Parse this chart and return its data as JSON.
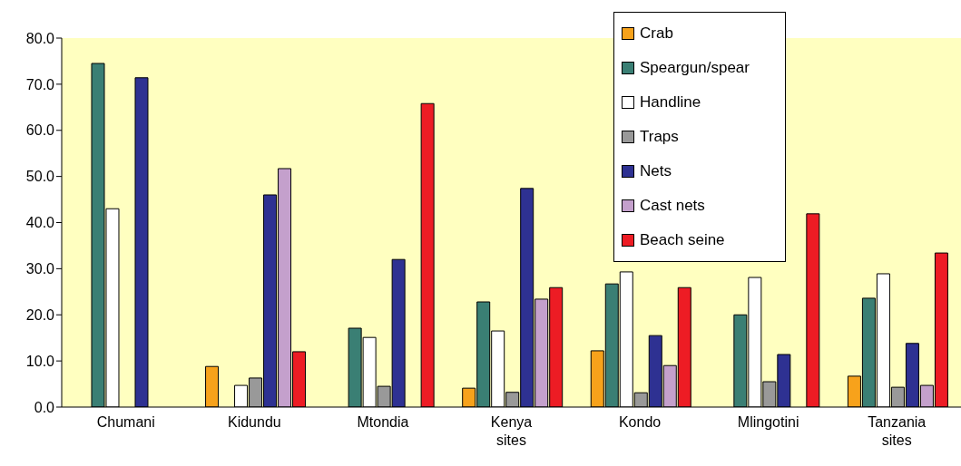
{
  "chart_data": {
    "type": "bar",
    "categories": [
      "Chumani",
      "Kidundu",
      "Mtondia",
      "Kenya sites",
      "Kondo",
      "Mlingotini",
      "Tanzania sites"
    ],
    "series": [
      {
        "name": "Crab",
        "color": "#f7a21b",
        "values": [
          0,
          8.8,
          0,
          4.1,
          12.2,
          0,
          6.7
        ]
      },
      {
        "name": "Speargun/spear",
        "color": "#3a7f74",
        "values": [
          74.5,
          0,
          17.1,
          22.8,
          26.7,
          20.0,
          23.6
        ]
      },
      {
        "name": "Handline",
        "color": "#ffffff",
        "values": [
          43.0,
          4.7,
          15.1,
          16.5,
          29.3,
          28.1,
          28.9
        ]
      },
      {
        "name": "Traps",
        "color": "#999999",
        "values": [
          0,
          6.3,
          4.5,
          3.2,
          3.1,
          5.5,
          4.3
        ]
      },
      {
        "name": "Nets",
        "color": "#2e3192",
        "values": [
          71.4,
          46.0,
          32.0,
          47.4,
          15.5,
          11.4,
          13.8
        ]
      },
      {
        "name": "Cast nets",
        "color": "#c4a0cc",
        "values": [
          0,
          51.7,
          0,
          23.4,
          9.0,
          0,
          4.7
        ]
      },
      {
        "name": "Beach seine",
        "color": "#ed1c24",
        "values": [
          0,
          12.0,
          65.8,
          25.9,
          25.9,
          41.9,
          33.4
        ]
      }
    ],
    "ylim": [
      0,
      80
    ],
    "yticks": [
      {
        "value": 0,
        "label": "0.0"
      },
      {
        "value": 10,
        "label": "10.0"
      },
      {
        "value": 20,
        "label": "20.0"
      },
      {
        "value": 30,
        "label": "30.0"
      },
      {
        "value": 40,
        "label": "40.0"
      },
      {
        "value": 50,
        "label": "50.0"
      },
      {
        "value": 60,
        "label": "60.0"
      },
      {
        "value": 70,
        "label": "70.0"
      },
      {
        "value": 80,
        "label": "80.0"
      }
    ],
    "grid": false,
    "legend": "top right"
  }
}
